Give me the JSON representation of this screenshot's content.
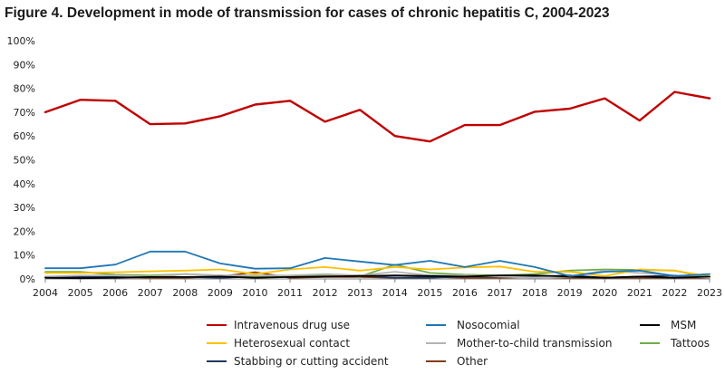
{
  "chart_data": {
    "type": "line",
    "title": "Figure 4. Development in mode of transmission for cases of chronic hepatitis C, 2004-2023",
    "xlabel": "",
    "ylabel": "",
    "x": [
      "2004",
      "2005",
      "2006",
      "2007",
      "2008",
      "2009",
      "2010",
      "2011",
      "2012",
      "2013",
      "2014",
      "2015",
      "2016",
      "2017",
      "2018",
      "2019",
      "2020",
      "2021",
      "2022",
      "2023"
    ],
    "ylim": [
      0,
      100
    ],
    "yticks": [
      "0%",
      "10%",
      "20%",
      "30%",
      "40%",
      "50%",
      "60%",
      "70%",
      "80%",
      "90%",
      "100%"
    ],
    "grid": false,
    "legend_position": "bottom",
    "series": [
      {
        "name": "Intravenous drug use",
        "color": "#c00000",
        "values": [
          70,
          75.2,
          74.8,
          65,
          65.3,
          68.3,
          73.2,
          74.8,
          66,
          71,
          60,
          57.7,
          64.6,
          64.6,
          70.2,
          71.5,
          75.8,
          66.5,
          78.5,
          75.8
        ]
      },
      {
        "name": "Nosocomial",
        "color": "#1f77b4",
        "values": [
          4.5,
          4.5,
          6,
          11.5,
          11.5,
          6.5,
          4.3,
          4.5,
          8.8,
          7.3,
          5.8,
          7.6,
          5,
          7.6,
          5,
          1.2,
          3,
          3.5,
          1.2,
          2
        ]
      },
      {
        "name": "MSM",
        "color": "#000000",
        "values": [
          0.5,
          0.3,
          0.5,
          0.8,
          0.8,
          1,
          0.5,
          0.8,
          1,
          1.2,
          1.5,
          1.2,
          1,
          1.5,
          1.5,
          1,
          0.5,
          1,
          0.5,
          1
        ]
      },
      {
        "name": "Heterosexual contact",
        "color": "#ffc000",
        "values": [
          2.5,
          2.5,
          2.8,
          3.2,
          3.5,
          4,
          2,
          4,
          5,
          3.5,
          5,
          4,
          4.8,
          5.2,
          3,
          3,
          1.2,
          4,
          3.5,
          1
        ]
      },
      {
        "name": "Mother-to-child transmission",
        "color": "#b4b4b4",
        "values": [
          1,
          1.5,
          1.5,
          1,
          2,
          1.5,
          1.5,
          1.5,
          2,
          1.5,
          3,
          1.5,
          1.5,
          1,
          0.5,
          1,
          3.5,
          2.5,
          1.5,
          0.5
        ]
      },
      {
        "name": "Tattoos",
        "color": "#70ad47",
        "values": [
          3,
          3,
          1.8,
          1.5,
          2,
          1.5,
          1,
          1,
          1.5,
          1,
          6,
          2.5,
          1.8,
          1.5,
          2,
          3.5,
          4,
          3.8,
          3.5,
          0.5
        ]
      },
      {
        "name": "Stabbing or cutting accident",
        "color": "#1f3864",
        "values": [
          1,
          0.8,
          1,
          1,
          0.8,
          0.5,
          1,
          1,
          1,
          1.5,
          0.5,
          0.5,
          1,
          1,
          1,
          1.5,
          0.5,
          1,
          1.5,
          0.5
        ]
      },
      {
        "name": "Other",
        "color": "#843c0c",
        "values": [
          0.8,
          0.5,
          0.8,
          0.5,
          0.5,
          1,
          2.8,
          0.5,
          0.8,
          0.8,
          0.5,
          0.8,
          0.5,
          0.5,
          0.8,
          0.5,
          0.5,
          0.5,
          0.5,
          0.5
        ]
      }
    ]
  }
}
